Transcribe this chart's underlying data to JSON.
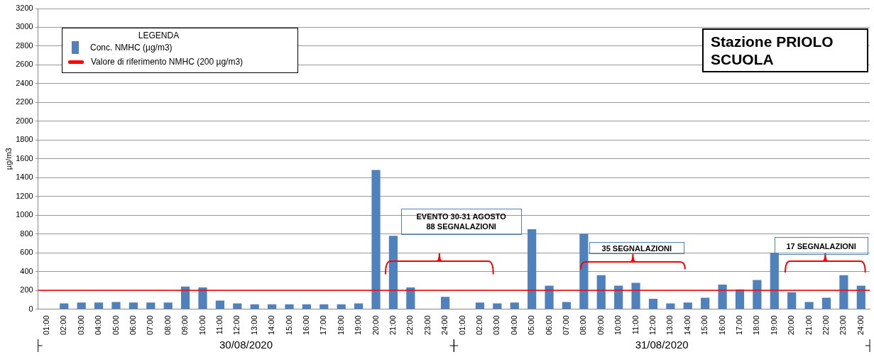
{
  "chart_data": {
    "type": "bar",
    "title": "Stazione PRIOLO SCUOLA",
    "ylabel": "µg/m3",
    "legend_title": "LEGENDA",
    "legend": "top left",
    "grid": "y",
    "categories": [
      "01:00",
      "02:00",
      "03:00",
      "04:00",
      "05:00",
      "06:00",
      "07:00",
      "08:00",
      "09:00",
      "10:00",
      "11:00",
      "12:00",
      "13:00",
      "14:00",
      "15:00",
      "16:00",
      "17:00",
      "18:00",
      "19:00",
      "20:00",
      "21:00",
      "22:00",
      "23:00",
      "24:00",
      "01:00",
      "02:00",
      "03:00",
      "04:00",
      "05:00",
      "06:00",
      "07:00",
      "08:00",
      "09:00",
      "10:00",
      "11:00",
      "12:00",
      "13:00",
      "14:00",
      "15:00",
      "16:00",
      "17:00",
      "18:00",
      "19:00",
      "20:00",
      "21:00",
      "22:00",
      "23:00",
      "24:00"
    ],
    "series": [
      {
        "name": "Conc. NMHC (µg/m3)",
        "color": "#4f81bd",
        "values": [
          null,
          60,
          70,
          70,
          75,
          70,
          70,
          70,
          240,
          230,
          90,
          60,
          50,
          50,
          50,
          50,
          50,
          50,
          60,
          1480,
          780,
          230,
          null,
          130,
          null,
          70,
          60,
          70,
          850,
          250,
          75,
          800,
          360,
          250,
          280,
          110,
          60,
          70,
          120,
          260,
          210,
          310,
          600,
          180,
          75,
          120,
          360,
          250
        ]
      }
    ],
    "ylim": [
      0,
      3200
    ],
    "yticks": [
      0,
      200,
      400,
      600,
      800,
      1000,
      1200,
      1400,
      1600,
      1800,
      2000,
      2200,
      2400,
      2600,
      2800,
      3000,
      3200
    ],
    "ref_lines": [
      {
        "axis": "y",
        "value": 200,
        "label": "Valore di riferimento NMHC (200 µg/m3)",
        "color": "#ff0000"
      }
    ],
    "annotations": [
      "EVENTO 30-31 AGOSTO\n88 SEGNALAZIONI",
      "35 SEGNALAZIONI",
      "17 SEGNALAZIONI",
      "30/08/2020",
      "31/08/2020"
    ]
  }
}
